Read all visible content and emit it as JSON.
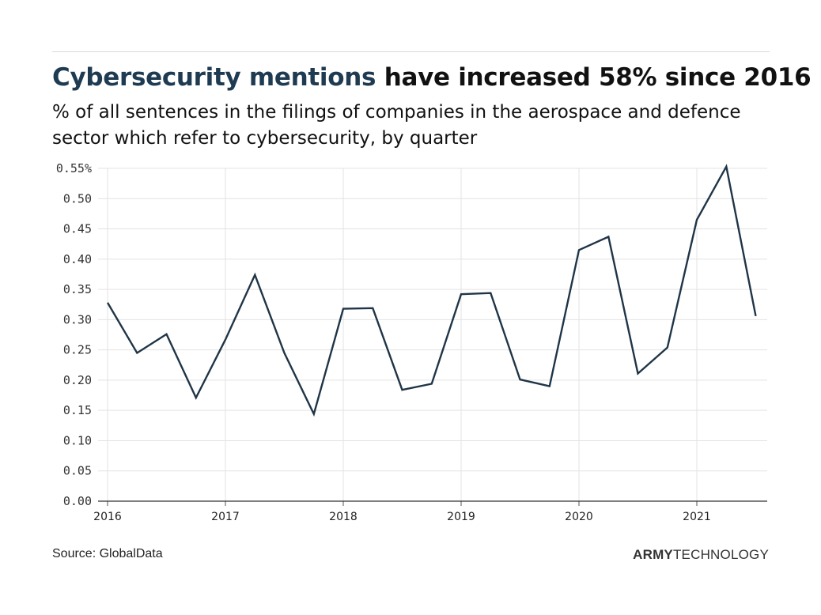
{
  "header": {
    "title_highlight": "Cybersecurity mentions",
    "title_rest": "have increased 58% since 2016",
    "subtitle": "% of all sentences in the filings of companies in the aerospace and defence sector which refer to cybersecurity, by quarter"
  },
  "footer": {
    "source": "Source: GlobalData",
    "brand_bold": "ARMY",
    "brand_light": "TECHNOLOGY"
  },
  "colors": {
    "line": "#1f3547",
    "highlight": "#1f3b52",
    "grid": "#e3e3e3"
  },
  "chart_data": {
    "type": "line",
    "title": "Cybersecurity mentions have increased 58% since 2016",
    "xlabel": "",
    "ylabel": "",
    "x_tick_labels": [
      "2016",
      "2017",
      "2018",
      "2019",
      "2020",
      "2021"
    ],
    "y_tick_labels": [
      "0.55%",
      "0.50",
      "0.45",
      "0.40",
      "0.35",
      "0.30",
      "0.25",
      "0.20",
      "0.15",
      "0.10",
      "0.05",
      "0.00"
    ],
    "ylim": [
      0,
      0.55
    ],
    "grid": true,
    "x": [
      "2016 Q1",
      "2016 Q2",
      "2016 Q3",
      "2016 Q4",
      "2017 Q1",
      "2017 Q2",
      "2017 Q3",
      "2017 Q4",
      "2018 Q1",
      "2018 Q2",
      "2018 Q3",
      "2018 Q4",
      "2019 Q1",
      "2019 Q2",
      "2019 Q3",
      "2019 Q4",
      "2020 Q1",
      "2020 Q2",
      "2020 Q3",
      "2020 Q4",
      "2021 Q1",
      "2021 Q2",
      "2021 Q3"
    ],
    "series": [
      {
        "values": [
          0.328,
          0.245,
          0.276,
          0.171,
          0.267,
          0.374,
          0.245,
          0.144,
          0.318,
          0.319,
          0.184,
          0.194,
          0.342,
          0.344,
          0.201,
          0.19,
          0.415,
          0.437,
          0.211,
          0.254,
          0.465,
          0.553,
          0.306
        ]
      }
    ]
  }
}
